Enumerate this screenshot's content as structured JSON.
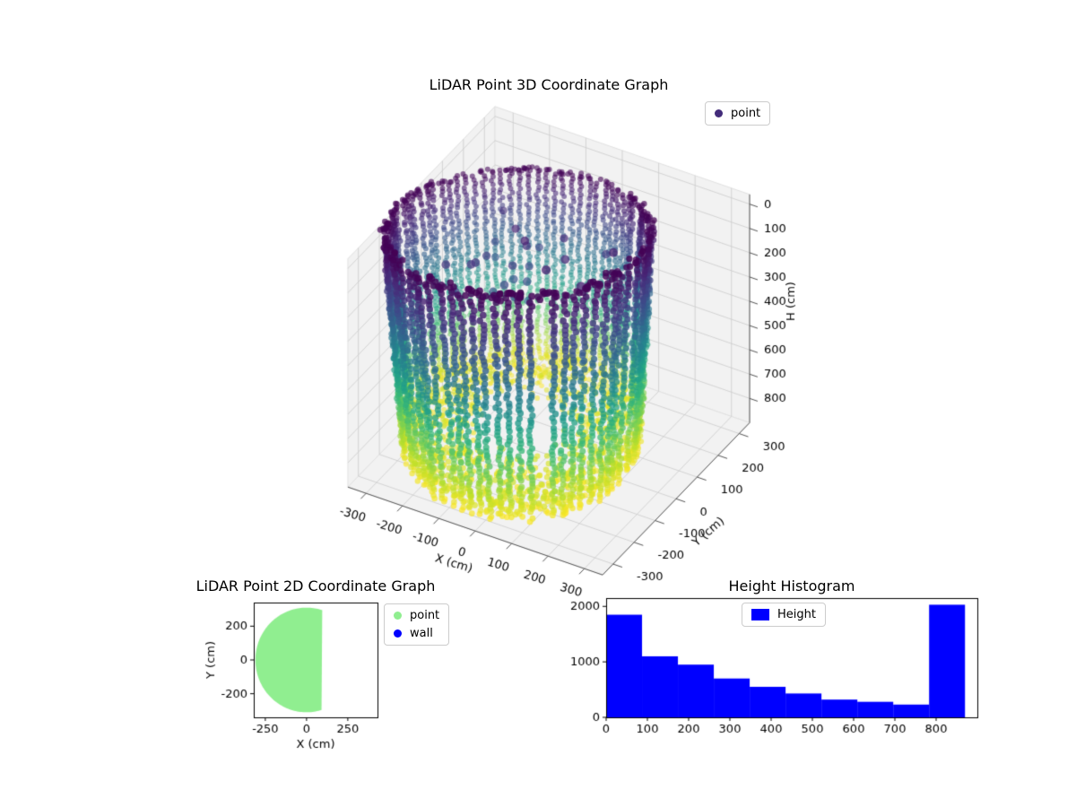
{
  "figure": {
    "background": "#ffffff"
  },
  "chart_data": [
    {
      "type": "scatter3d",
      "title": "LiDAR Point 3D Coordinate Graph",
      "xlabel": "X (cm)",
      "ylabel": "Y (cm)",
      "zlabel": "H (cm)",
      "x_ticks": [
        -300,
        -200,
        -100,
        0,
        100,
        200,
        300
      ],
      "y_ticks": [
        300,
        200,
        100,
        0,
        -100,
        -200,
        -300
      ],
      "h_ticks": [
        0,
        100,
        200,
        300,
        400,
        500,
        600,
        700,
        800
      ],
      "x_range": [
        -350,
        350
      ],
      "y_range": [
        -350,
        350
      ],
      "h_range": [
        -40,
        900
      ],
      "h_axis_inverted": true,
      "view": {
        "azim": -60,
        "elev": 30,
        "box_aspect": [
          4,
          4,
          3
        ]
      },
      "colormap": "viridis",
      "legend": [
        {
          "label": "point",
          "color": "#432c7a"
        }
      ],
      "pane_color": "#f2f2f2",
      "grid_color": "#cccccc",
      "point_cloud": {
        "shape": "cylindrical-shell-with-floor",
        "center_xy_cm": [
          -80,
          0
        ],
        "radius_cm": 300,
        "height_range_cm": [
          0,
          865
        ],
        "column_angle_step_deg": 4.5,
        "column_height_step_cm": 16,
        "floor_band_cm": [
          800,
          868
        ],
        "floor_points": 1150,
        "rim_points": 170,
        "interior_blob_points": 26,
        "seed": 42
      }
    },
    {
      "type": "scatter",
      "title": "LiDAR Point 2D Coordinate Graph",
      "xlabel": "X (cm)",
      "ylabel": "Y (cm)",
      "x_ticks": [
        -250,
        0,
        250
      ],
      "y_ticks": [
        200,
        0,
        -200
      ],
      "xlim": [
        -320,
        430
      ],
      "ylim": [
        -340,
        340
      ],
      "legend": [
        {
          "label": "point",
          "color": "#90ee90"
        },
        {
          "label": "wall",
          "color": "#0000ff"
        }
      ],
      "region": {
        "shape": "clipped-disk",
        "center": [
          0,
          0
        ],
        "radius_cm": 310,
        "x_max_cm": 95,
        "color": "#90ee90"
      }
    },
    {
      "type": "bar",
      "title": "Height Histogram",
      "legend": [
        {
          "label": "Height",
          "color": "#0000ff"
        }
      ],
      "bar_color": "#0000ff",
      "bin_edges": [
        0,
        87,
        174,
        261,
        348,
        435,
        522,
        609,
        696,
        783,
        870
      ],
      "counts": [
        1850,
        1100,
        950,
        700,
        550,
        430,
        320,
        280,
        230,
        2030
      ],
      "x_ticks": [
        0,
        100,
        200,
        300,
        400,
        500,
        600,
        700,
        800
      ],
      "y_ticks": [
        0,
        1000,
        2000
      ],
      "xlim": [
        0,
        900
      ],
      "ylim": [
        0,
        2150
      ]
    }
  ]
}
